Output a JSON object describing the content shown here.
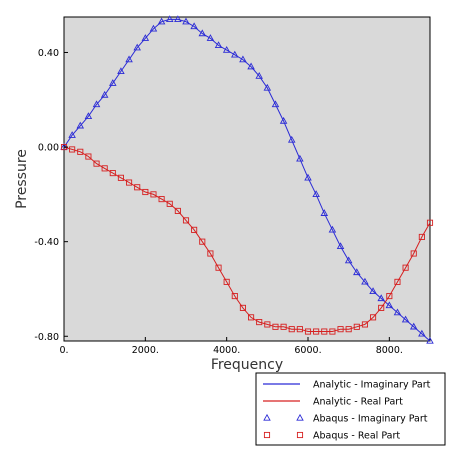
{
  "chart_data": {
    "type": "line",
    "title": "",
    "xlabel": "Frequency",
    "ylabel": "Pressure",
    "xlim": [
      0,
      9000
    ],
    "ylim": [
      -0.82,
      0.55
    ],
    "xticks": [
      0,
      2000,
      4000,
      6000,
      8000
    ],
    "xtick_labels": [
      "0.",
      "2000.",
      "4000.",
      "6000.",
      "8000."
    ],
    "yticks": [
      0.4,
      0.0,
      -0.4,
      -0.8
    ],
    "ytick_labels": [
      "0.40",
      "0.00",
      "-0.40",
      "-0.80"
    ],
    "grid": false,
    "plot_background": "#d9d9d9",
    "legend_placement": "bottom-right, below plot",
    "series": [
      {
        "name": "Analytic - Imaginary Part",
        "kind": "line",
        "color": "#2b2bd6",
        "x": [
          0,
          200,
          400,
          600,
          800,
          1000,
          1200,
          1400,
          1600,
          1800,
          2000,
          2200,
          2400,
          2600,
          2800,
          3000,
          3200,
          3400,
          3600,
          3800,
          4000,
          4200,
          4400,
          4600,
          4800,
          5000,
          5200,
          5400,
          5600,
          5800,
          6000,
          6200,
          6400,
          6600,
          6800,
          7000,
          7200,
          7400,
          7600,
          7800,
          8000,
          8200,
          8400,
          8600,
          8800,
          9000
        ],
        "y": [
          0.0,
          0.05,
          0.09,
          0.13,
          0.18,
          0.22,
          0.27,
          0.32,
          0.37,
          0.42,
          0.46,
          0.5,
          0.53,
          0.54,
          0.54,
          0.53,
          0.51,
          0.48,
          0.46,
          0.43,
          0.41,
          0.39,
          0.37,
          0.34,
          0.3,
          0.25,
          0.18,
          0.11,
          0.03,
          -0.05,
          -0.13,
          -0.2,
          -0.28,
          -0.35,
          -0.42,
          -0.48,
          -0.53,
          -0.57,
          -0.61,
          -0.64,
          -0.67,
          -0.7,
          -0.73,
          -0.76,
          -0.79,
          -0.82
        ]
      },
      {
        "name": "Analytic - Real Part",
        "kind": "line",
        "color": "#d62020",
        "x": [
          0,
          200,
          400,
          600,
          800,
          1000,
          1200,
          1400,
          1600,
          1800,
          2000,
          2200,
          2400,
          2600,
          2800,
          3000,
          3200,
          3400,
          3600,
          3800,
          4000,
          4200,
          4400,
          4600,
          4800,
          5000,
          5200,
          5400,
          5600,
          5800,
          6000,
          6200,
          6400,
          6600,
          6800,
          7000,
          7200,
          7400,
          7600,
          7800,
          8000,
          8200,
          8400,
          8600,
          8800,
          9000
        ],
        "y": [
          0.0,
          -0.01,
          -0.02,
          -0.04,
          -0.07,
          -0.09,
          -0.11,
          -0.13,
          -0.15,
          -0.17,
          -0.19,
          -0.2,
          -0.22,
          -0.24,
          -0.27,
          -0.31,
          -0.35,
          -0.4,
          -0.45,
          -0.51,
          -0.57,
          -0.63,
          -0.68,
          -0.72,
          -0.74,
          -0.75,
          -0.76,
          -0.76,
          -0.77,
          -0.77,
          -0.78,
          -0.78,
          -0.78,
          -0.78,
          -0.77,
          -0.77,
          -0.76,
          -0.75,
          -0.72,
          -0.68,
          -0.63,
          -0.57,
          -0.51,
          -0.45,
          -0.38,
          -0.32
        ]
      },
      {
        "name": "Abaqus - Imaginary Part",
        "kind": "markers",
        "marker": "triangle",
        "color": "#2b2bd6",
        "x": [
          0,
          200,
          400,
          600,
          800,
          1000,
          1200,
          1400,
          1600,
          1800,
          2000,
          2200,
          2400,
          2600,
          2800,
          3000,
          3200,
          3400,
          3600,
          3800,
          4000,
          4200,
          4400,
          4600,
          4800,
          5000,
          5200,
          5400,
          5600,
          5800,
          6000,
          6200,
          6400,
          6600,
          6800,
          7000,
          7200,
          7400,
          7600,
          7800,
          8000,
          8200,
          8400,
          8600,
          8800,
          9000
        ],
        "y": [
          0.0,
          0.05,
          0.09,
          0.13,
          0.18,
          0.22,
          0.27,
          0.32,
          0.37,
          0.42,
          0.46,
          0.5,
          0.53,
          0.54,
          0.54,
          0.53,
          0.51,
          0.48,
          0.46,
          0.43,
          0.41,
          0.39,
          0.37,
          0.34,
          0.3,
          0.25,
          0.18,
          0.11,
          0.03,
          -0.05,
          -0.13,
          -0.2,
          -0.28,
          -0.35,
          -0.42,
          -0.48,
          -0.53,
          -0.57,
          -0.61,
          -0.64,
          -0.67,
          -0.7,
          -0.73,
          -0.76,
          -0.79,
          -0.82
        ]
      },
      {
        "name": "Abaqus - Real Part",
        "kind": "markers",
        "marker": "square",
        "color": "#d62020",
        "x": [
          0,
          200,
          400,
          600,
          800,
          1000,
          1200,
          1400,
          1600,
          1800,
          2000,
          2200,
          2400,
          2600,
          2800,
          3000,
          3200,
          3400,
          3600,
          3800,
          4000,
          4200,
          4400,
          4600,
          4800,
          5000,
          5200,
          5400,
          5600,
          5800,
          6000,
          6200,
          6400,
          6600,
          6800,
          7000,
          7200,
          7400,
          7600,
          7800,
          8000,
          8200,
          8400,
          8600,
          8800,
          9000
        ],
        "y": [
          0.0,
          -0.01,
          -0.02,
          -0.04,
          -0.07,
          -0.09,
          -0.11,
          -0.13,
          -0.15,
          -0.17,
          -0.19,
          -0.2,
          -0.22,
          -0.24,
          -0.27,
          -0.31,
          -0.35,
          -0.4,
          -0.45,
          -0.51,
          -0.57,
          -0.63,
          -0.68,
          -0.72,
          -0.74,
          -0.75,
          -0.76,
          -0.76,
          -0.77,
          -0.77,
          -0.78,
          -0.78,
          -0.78,
          -0.78,
          -0.77,
          -0.77,
          -0.76,
          -0.75,
          -0.72,
          -0.68,
          -0.63,
          -0.57,
          -0.51,
          -0.45,
          -0.38,
          -0.32
        ]
      }
    ]
  }
}
